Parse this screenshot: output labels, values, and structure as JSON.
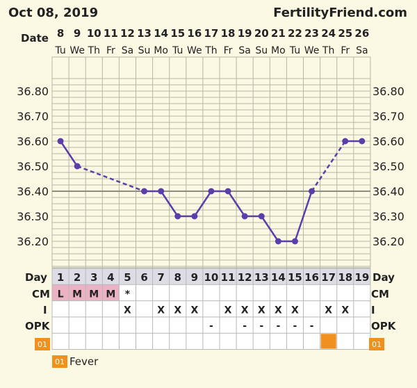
{
  "header": {
    "date": "Oct 08, 2019",
    "site": "FertilityFriend.com"
  },
  "labels": {
    "date": "Date",
    "day": "Day",
    "cm": "CM",
    "i": "I",
    "opk": "OPK",
    "fever_badge": "01",
    "fever": "Fever"
  },
  "chart_data": {
    "type": "line",
    "dates": [
      "8",
      "9",
      "10",
      "11",
      "12",
      "13",
      "14",
      "15",
      "16",
      "17",
      "18",
      "19",
      "20",
      "21",
      "22",
      "23",
      "24",
      "25",
      "26"
    ],
    "weekdays": [
      "Tu",
      "We",
      "Th",
      "Fr",
      "Sa",
      "Su",
      "Mo",
      "Tu",
      "We",
      "Th",
      "Fr",
      "Sa",
      "Su",
      "Mo",
      "Tu",
      "We",
      "Th",
      "Fr",
      "Sa"
    ],
    "cycle_days": [
      "1",
      "2",
      "3",
      "4",
      "5",
      "6",
      "7",
      "8",
      "9",
      "10",
      "11",
      "12",
      "13",
      "14",
      "15",
      "16",
      "17",
      "18",
      "19"
    ],
    "ylim": [
      36.1,
      36.9
    ],
    "y_ticks": [
      "36.80",
      "36.70",
      "36.60",
      "36.50",
      "36.40",
      "36.30",
      "36.20"
    ],
    "y_tick_values": [
      36.8,
      36.7,
      36.6,
      36.5,
      36.4,
      36.3,
      36.2
    ],
    "coverline": 36.4,
    "series": [
      {
        "values": [
          36.6,
          36.5,
          null,
          null,
          null,
          36.4,
          36.4,
          36.3,
          36.3,
          36.4,
          36.4,
          36.3,
          36.3,
          36.2,
          36.2,
          36.4,
          null,
          36.6,
          36.6
        ]
      }
    ],
    "cm": [
      "L",
      "M",
      "M",
      "M",
      "*",
      "",
      "",
      "",
      "",
      "",
      "",
      "",
      "",
      "",
      "",
      "",
      "",
      "",
      ""
    ],
    "intercourse": [
      "",
      "",
      "",
      "",
      "X",
      "",
      "X",
      "X",
      "X",
      "",
      "X",
      "X",
      "X",
      "X",
      "X",
      "",
      "X",
      "X",
      ""
    ],
    "opk": [
      "",
      "",
      "",
      "",
      "",
      "",
      "",
      "",
      "",
      "-",
      "",
      "-",
      "-",
      "-",
      "-",
      "-",
      "",
      "",
      ""
    ],
    "fever": [
      false,
      false,
      false,
      false,
      false,
      false,
      false,
      false,
      false,
      false,
      false,
      false,
      false,
      false,
      false,
      false,
      true,
      false,
      false
    ]
  },
  "colors": {
    "line": "#5a3ea9",
    "grid": "#b7b7a6",
    "coverline": "#8e8e80",
    "cm_highlight": "#ebb2c4",
    "fever": "#f0901e",
    "day_row": "#dedde6"
  }
}
